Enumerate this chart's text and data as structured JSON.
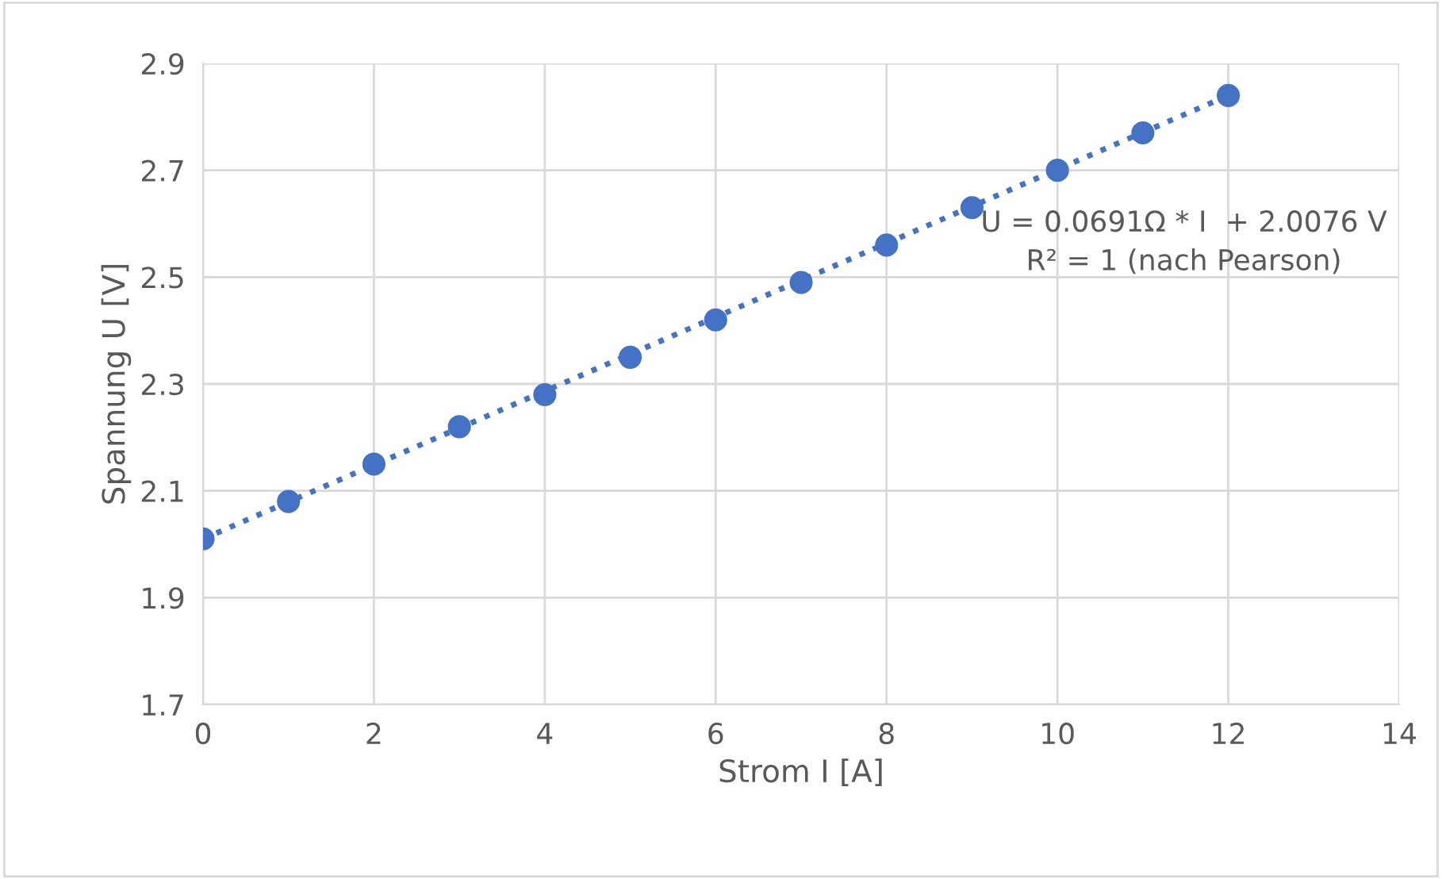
{
  "chart_data": {
    "type": "scatter",
    "xlabel": "Strom I [A]",
    "ylabel": "Spannung U [V]",
    "x": [
      0,
      1,
      2,
      3,
      4,
      5,
      6,
      7,
      8,
      9,
      10,
      11,
      12
    ],
    "series": [
      {
        "color": "#4472c4",
        "marker": "circle",
        "values": [
          2.01,
          2.08,
          2.15,
          2.22,
          2.28,
          2.35,
          2.42,
          2.49,
          2.56,
          2.63,
          2.7,
          2.77,
          2.84
        ]
      },
      {
        "type": "line",
        "color": "#4472c4",
        "line_style": "dotted",
        "x": [
          0,
          12
        ],
        "values": [
          2.01,
          2.84
        ]
      }
    ],
    "xlim": [
      0,
      14
    ],
    "xticks": [
      0,
      2,
      4,
      6,
      8,
      10,
      12,
      14
    ],
    "ylim": [
      1.7,
      2.9
    ],
    "yticks": [
      1.7,
      1.9,
      2.1,
      2.3,
      2.5,
      2.7,
      2.9
    ],
    "grid": true,
    "annotations": [
      "U = 0.0691Ω * I  + 2.0076 V\nR² = 1 (nach Pearson)"
    ]
  }
}
